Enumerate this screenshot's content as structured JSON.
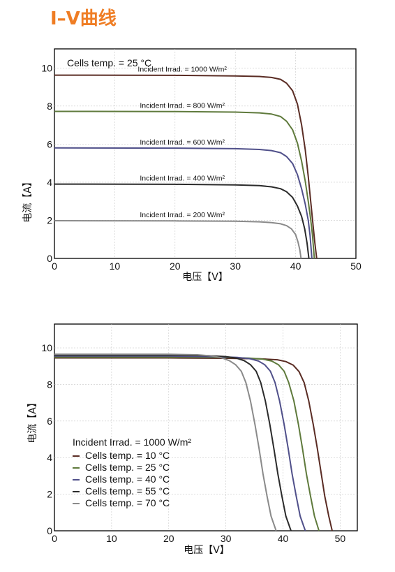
{
  "page": {
    "title": "I–V曲线"
  },
  "colors": {
    "title": "#ef7d24"
  },
  "chart_data": [
    {
      "type": "line",
      "annotation": "Cells temp. = 25 °C",
      "xlabel": "电压【V】",
      "ylabel": "电流【A】",
      "xlim": [
        0,
        50
      ],
      "ylim": [
        0,
        11
      ],
      "xticks": [
        0,
        10,
        20,
        30,
        40,
        50
      ],
      "yticks": [
        0,
        2,
        4,
        6,
        8,
        10
      ],
      "grid": true,
      "legend": "none",
      "series": [
        {
          "name": "Incident Irrad. = 1000 W/m²",
          "color": "#5a2c24",
          "points": [
            [
              0,
              9.62
            ],
            [
              20,
              9.61
            ],
            [
              30,
              9.58
            ],
            [
              34,
              9.55
            ],
            [
              36,
              9.5
            ],
            [
              37.5,
              9.4
            ],
            [
              38.5,
              9.2
            ],
            [
              39.5,
              8.8
            ],
            [
              40.3,
              8.1
            ],
            [
              41,
              7.0
            ],
            [
              41.6,
              5.7
            ],
            [
              42.1,
              4.3
            ],
            [
              42.5,
              3.0
            ],
            [
              42.9,
              1.7
            ],
            [
              43.2,
              0.8
            ],
            [
              43.5,
              0
            ]
          ]
        },
        {
          "name": "Incident Irrad. = 800 W/m²",
          "color": "#5f7a3c",
          "points": [
            [
              0,
              7.72
            ],
            [
              20,
              7.71
            ],
            [
              30,
              7.68
            ],
            [
              34,
              7.64
            ],
            [
              36,
              7.58
            ],
            [
              37.5,
              7.45
            ],
            [
              38.5,
              7.2
            ],
            [
              39.5,
              6.75
            ],
            [
              40.3,
              6.05
            ],
            [
              41,
              5.1
            ],
            [
              41.6,
              4.05
            ],
            [
              42.1,
              3.0
            ],
            [
              42.5,
              2.05
            ],
            [
              42.8,
              1.2
            ],
            [
              43.1,
              0
            ]
          ]
        },
        {
          "name": "Incident Irrad. = 600 W/m²",
          "color": "#50508a",
          "points": [
            [
              0,
              5.8
            ],
            [
              20,
              5.79
            ],
            [
              30,
              5.76
            ],
            [
              34,
              5.72
            ],
            [
              36,
              5.66
            ],
            [
              37.5,
              5.55
            ],
            [
              38.5,
              5.35
            ],
            [
              39.5,
              4.98
            ],
            [
              40.3,
              4.4
            ],
            [
              41,
              3.65
            ],
            [
              41.6,
              2.85
            ],
            [
              42.1,
              2.0
            ],
            [
              42.4,
              1.2
            ],
            [
              42.7,
              0
            ]
          ]
        },
        {
          "name": "Incident Irrad. = 400 W/m²",
          "color": "#2b2b2b",
          "points": [
            [
              0,
              3.9
            ],
            [
              20,
              3.89
            ],
            [
              30,
              3.86
            ],
            [
              34,
              3.82
            ],
            [
              36,
              3.76
            ],
            [
              37.5,
              3.66
            ],
            [
              38.5,
              3.5
            ],
            [
              39.5,
              3.2
            ],
            [
              40.3,
              2.75
            ],
            [
              41,
              2.2
            ],
            [
              41.5,
              1.55
            ],
            [
              41.9,
              0.8
            ],
            [
              42.2,
              0
            ]
          ]
        },
        {
          "name": "Incident Irrad. = 200 W/m²",
          "color": "#8a8a8a",
          "points": [
            [
              0,
              1.98
            ],
            [
              20,
              1.97
            ],
            [
              30,
              1.95
            ],
            [
              34,
              1.92
            ],
            [
              36,
              1.88
            ],
            [
              37.5,
              1.82
            ],
            [
              38.5,
              1.72
            ],
            [
              39.3,
              1.55
            ],
            [
              40,
              1.25
            ],
            [
              40.4,
              0.85
            ],
            [
              40.7,
              0.45
            ],
            [
              40.9,
              0
            ]
          ]
        }
      ]
    },
    {
      "type": "line",
      "annotation": "Incident Irrad. = 1000 W/m²",
      "xlabel": "电压【V】",
      "ylabel": "电流【A】",
      "xlim": [
        0,
        53
      ],
      "ylim": [
        0,
        11.3
      ],
      "xticks": [
        0,
        10,
        20,
        30,
        40,
        50
      ],
      "yticks": [
        0,
        2,
        4,
        6,
        8,
        10
      ],
      "grid": true,
      "legend": "bottom-left",
      "series": [
        {
          "name": "Cells temp. = 10 °C",
          "color": "#5a2c24",
          "points": [
            [
              0,
              9.45
            ],
            [
              20,
              9.45
            ],
            [
              30,
              9.43
            ],
            [
              36,
              9.4
            ],
            [
              39,
              9.35
            ],
            [
              40.5,
              9.25
            ],
            [
              41.8,
              9.05
            ],
            [
              42.8,
              8.7
            ],
            [
              43.7,
              8.1
            ],
            [
              44.5,
              7.1
            ],
            [
              45.3,
              5.8
            ],
            [
              46,
              4.5
            ],
            [
              46.7,
              3.1
            ],
            [
              47.3,
              1.9
            ],
            [
              48,
              0.8
            ],
            [
              48.6,
              0
            ]
          ]
        },
        {
          "name": "Cells temp. = 25 °C",
          "color": "#5f7a3c",
          "points": [
            [
              0,
              9.5
            ],
            [
              20,
              9.5
            ],
            [
              30,
              9.47
            ],
            [
              34,
              9.44
            ],
            [
              36.5,
              9.38
            ],
            [
              38,
              9.28
            ],
            [
              39.2,
              9.08
            ],
            [
              40.2,
              8.72
            ],
            [
              41,
              8.1
            ],
            [
              41.9,
              7.1
            ],
            [
              42.7,
              5.8
            ],
            [
              43.4,
              4.5
            ],
            [
              44.1,
              3.1
            ],
            [
              44.8,
              1.9
            ],
            [
              45.5,
              0.8
            ],
            [
              46.3,
              0
            ]
          ]
        },
        {
          "name": "Cells temp. = 40 °C",
          "color": "#50508a",
          "points": [
            [
              0,
              9.55
            ],
            [
              20,
              9.55
            ],
            [
              28,
              9.52
            ],
            [
              32,
              9.48
            ],
            [
              34.3,
              9.4
            ],
            [
              35.7,
              9.28
            ],
            [
              36.8,
              9.08
            ],
            [
              37.8,
              8.72
            ],
            [
              38.6,
              8.1
            ],
            [
              39.4,
              7.1
            ],
            [
              40.2,
              5.8
            ],
            [
              40.9,
              4.5
            ],
            [
              41.6,
              3.1
            ],
            [
              42.3,
              1.9
            ],
            [
              43,
              0.8
            ],
            [
              43.9,
              0
            ]
          ]
        },
        {
          "name": "Cells temp. = 55 °C",
          "color": "#2b2b2b",
          "points": [
            [
              0,
              9.6
            ],
            [
              20,
              9.6
            ],
            [
              27,
              9.57
            ],
            [
              30,
              9.52
            ],
            [
              31.8,
              9.44
            ],
            [
              33.2,
              9.3
            ],
            [
              34.3,
              9.08
            ],
            [
              35.3,
              8.72
            ],
            [
              36.1,
              8.1
            ],
            [
              36.9,
              7.1
            ],
            [
              37.7,
              5.8
            ],
            [
              38.4,
              4.5
            ],
            [
              39.1,
              3.1
            ],
            [
              39.8,
              1.9
            ],
            [
              40.5,
              0.8
            ],
            [
              41.4,
              0
            ]
          ]
        },
        {
          "name": "Cells temp. = 70 °C",
          "color": "#8a8a8a",
          "points": [
            [
              0,
              9.65
            ],
            [
              20,
              9.65
            ],
            [
              25,
              9.62
            ],
            [
              27.5,
              9.56
            ],
            [
              29.2,
              9.46
            ],
            [
              30.6,
              9.3
            ],
            [
              31.7,
              9.08
            ],
            [
              32.7,
              8.72
            ],
            [
              33.5,
              8.1
            ],
            [
              34.3,
              7.1
            ],
            [
              35.1,
              5.8
            ],
            [
              35.8,
              4.5
            ],
            [
              36.5,
              3.1
            ],
            [
              37.2,
              1.9
            ],
            [
              37.9,
              0.8
            ],
            [
              38.8,
              0
            ]
          ]
        }
      ]
    }
  ]
}
